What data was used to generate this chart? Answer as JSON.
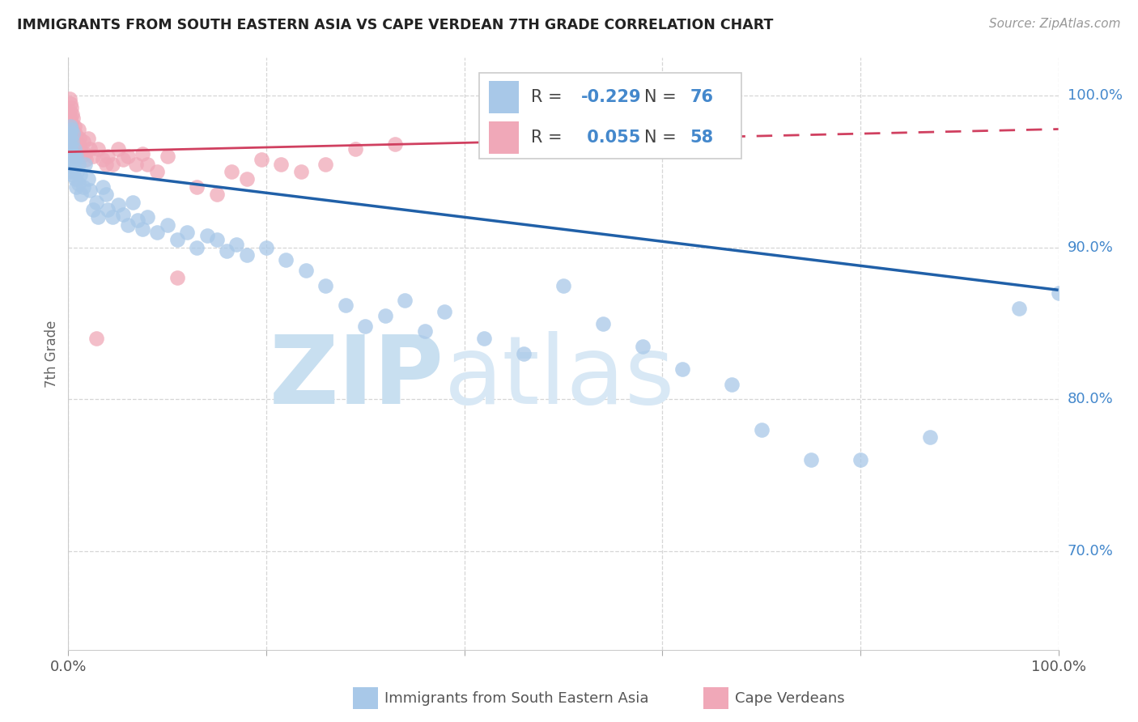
{
  "title": "IMMIGRANTS FROM SOUTH EASTERN ASIA VS CAPE VERDEAN 7TH GRADE CORRELATION CHART",
  "source": "Source: ZipAtlas.com",
  "ylabel": "7th Grade",
  "ylabel_right_ticks": [
    0.7,
    0.8,
    0.9,
    1.0
  ],
  "ylabel_right_labels": [
    "70.0%",
    "80.0%",
    "90.0%",
    "100.0%"
  ],
  "xlim": [
    0.0,
    1.0
  ],
  "ylim": [
    0.635,
    1.025
  ],
  "blue_color": "#a8c8e8",
  "pink_color": "#f0a8b8",
  "blue_line_color": "#2060a8",
  "pink_line_color": "#d04060",
  "blue_R": -0.229,
  "blue_N": 76,
  "pink_R": 0.055,
  "pink_N": 58,
  "blue_x": [
    0.001,
    0.001,
    0.002,
    0.002,
    0.002,
    0.003,
    0.003,
    0.003,
    0.004,
    0.004,
    0.004,
    0.005,
    0.005,
    0.005,
    0.006,
    0.006,
    0.007,
    0.007,
    0.008,
    0.008,
    0.009,
    0.01,
    0.01,
    0.012,
    0.013,
    0.015,
    0.017,
    0.02,
    0.022,
    0.025,
    0.028,
    0.03,
    0.035,
    0.038,
    0.04,
    0.045,
    0.05,
    0.055,
    0.06,
    0.065,
    0.07,
    0.075,
    0.08,
    0.09,
    0.1,
    0.11,
    0.12,
    0.13,
    0.14,
    0.15,
    0.16,
    0.17,
    0.18,
    0.2,
    0.22,
    0.24,
    0.26,
    0.28,
    0.3,
    0.32,
    0.34,
    0.36,
    0.38,
    0.42,
    0.46,
    0.5,
    0.54,
    0.58,
    0.62,
    0.67,
    0.7,
    0.75,
    0.8,
    0.87,
    0.96,
    1.0
  ],
  "blue_y": [
    0.975,
    0.968,
    0.98,
    0.972,
    0.965,
    0.978,
    0.96,
    0.955,
    0.97,
    0.958,
    0.95,
    0.975,
    0.962,
    0.948,
    0.965,
    0.952,
    0.958,
    0.945,
    0.96,
    0.94,
    0.95,
    0.955,
    0.942,
    0.948,
    0.935,
    0.94,
    0.955,
    0.945,
    0.938,
    0.925,
    0.93,
    0.92,
    0.94,
    0.935,
    0.925,
    0.92,
    0.928,
    0.922,
    0.915,
    0.93,
    0.918,
    0.912,
    0.92,
    0.91,
    0.915,
    0.905,
    0.91,
    0.9,
    0.908,
    0.905,
    0.898,
    0.902,
    0.895,
    0.9,
    0.892,
    0.885,
    0.875,
    0.862,
    0.848,
    0.855,
    0.865,
    0.845,
    0.858,
    0.84,
    0.83,
    0.875,
    0.85,
    0.835,
    0.82,
    0.81,
    0.78,
    0.76,
    0.76,
    0.775,
    0.86,
    0.87
  ],
  "pink_x": [
    0.001,
    0.001,
    0.002,
    0.002,
    0.002,
    0.003,
    0.003,
    0.003,
    0.004,
    0.004,
    0.004,
    0.005,
    0.005,
    0.005,
    0.006,
    0.006,
    0.006,
    0.007,
    0.007,
    0.008,
    0.008,
    0.009,
    0.01,
    0.01,
    0.011,
    0.012,
    0.013,
    0.015,
    0.017,
    0.018,
    0.02,
    0.022,
    0.025,
    0.028,
    0.03,
    0.035,
    0.038,
    0.04,
    0.045,
    0.05,
    0.055,
    0.06,
    0.068,
    0.075,
    0.08,
    0.09,
    0.1,
    0.11,
    0.13,
    0.15,
    0.165,
    0.18,
    0.195,
    0.215,
    0.235,
    0.26,
    0.29,
    0.33
  ],
  "pink_y": [
    0.998,
    0.99,
    0.995,
    0.985,
    0.978,
    0.992,
    0.982,
    0.975,
    0.988,
    0.978,
    0.97,
    0.985,
    0.975,
    0.965,
    0.98,
    0.97,
    0.96,
    0.975,
    0.965,
    0.97,
    0.962,
    0.965,
    0.978,
    0.968,
    0.972,
    0.965,
    0.96,
    0.97,
    0.962,
    0.958,
    0.972,
    0.965,
    0.96,
    0.84,
    0.965,
    0.958,
    0.955,
    0.96,
    0.955,
    0.965,
    0.958,
    0.96,
    0.955,
    0.962,
    0.955,
    0.95,
    0.96,
    0.88,
    0.94,
    0.935,
    0.95,
    0.945,
    0.958,
    0.955,
    0.95,
    0.955,
    0.965,
    0.968
  ],
  "watermark_zip": "ZIP",
  "watermark_atlas": "atlas",
  "grid_color": "#cccccc",
  "background_color": "#ffffff",
  "blue_line_y0": 0.952,
  "blue_line_y1": 0.872,
  "pink_line_y0": 0.963,
  "pink_line_y1": 0.978,
  "pink_line_end_x": 0.45
}
